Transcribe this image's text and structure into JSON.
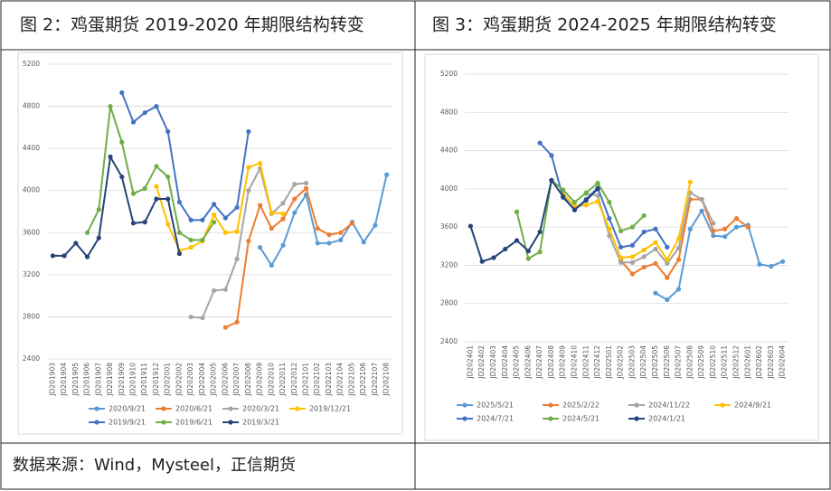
{
  "chart_data": [
    {
      "type": "line",
      "title": "图 2：鸡蛋期货 2019-2020 年期限结构转变",
      "categories": [
        "JD201903",
        "JD201904",
        "JD201905",
        "JD201906",
        "JD201907",
        "JD201908",
        "JD201909",
        "JD201910",
        "JD201911",
        "JD201912",
        "JD202001",
        "JD202002",
        "JD202003",
        "JD202004",
        "JD202005",
        "JD202006",
        "JD202007",
        "JD202008",
        "JD202009",
        "JD202010",
        "JD202011",
        "JD202012",
        "JD202101",
        "JD202102",
        "JD202103",
        "JD202104",
        "JD202105",
        "JD202106",
        "JD202107",
        "JD202108"
      ],
      "ylim": [
        2400,
        5200
      ],
      "yticks": [
        2400,
        2800,
        3200,
        3600,
        4000,
        4400,
        4800,
        5200
      ],
      "grid": true,
      "legend": "bottom",
      "series": [
        {
          "name": "2020/9/21",
          "color": "#5b9bd5",
          "values": [
            null,
            null,
            null,
            null,
            null,
            null,
            null,
            null,
            null,
            null,
            null,
            null,
            null,
            null,
            null,
            null,
            null,
            null,
            3460,
            3290,
            3480,
            3790,
            3960,
            3500,
            3500,
            3530,
            3700,
            3510,
            3670,
            4150
          ]
        },
        {
          "name": "2020/6/21",
          "color": "#ed7d31",
          "values": [
            null,
            null,
            null,
            null,
            null,
            null,
            null,
            null,
            null,
            null,
            null,
            null,
            null,
            null,
            null,
            2700,
            2750,
            3520,
            3860,
            3640,
            3730,
            3920,
            4020,
            3640,
            3580,
            3600,
            3690,
            null,
            null,
            null
          ]
        },
        {
          "name": "2020/3/21",
          "color": "#a5a5a5",
          "values": [
            null,
            null,
            null,
            null,
            null,
            null,
            null,
            null,
            null,
            null,
            null,
            null,
            2800,
            2790,
            3050,
            3060,
            3350,
            4000,
            4210,
            3780,
            3880,
            4060,
            4070,
            null,
            null,
            null,
            null,
            null,
            null,
            null
          ]
        },
        {
          "name": "2019/12/21",
          "color": "#ffc000",
          "values": [
            null,
            null,
            null,
            null,
            null,
            null,
            null,
            null,
            null,
            4040,
            3680,
            3430,
            3460,
            3520,
            3770,
            3600,
            3610,
            4220,
            4260,
            3790,
            3780,
            null,
            null,
            null,
            null,
            null,
            null,
            null,
            null,
            null
          ]
        },
        {
          "name": "2019/9/21",
          "color": "#4472c4",
          "values": [
            null,
            null,
            null,
            null,
            null,
            null,
            4930,
            4650,
            4740,
            4800,
            4560,
            3890,
            3720,
            3720,
            3870,
            3740,
            3840,
            4560,
            null,
            null,
            null,
            null,
            null,
            null,
            null,
            null,
            null,
            null,
            null,
            null
          ]
        },
        {
          "name": "2019/6/21",
          "color": "#70ad47",
          "values": [
            null,
            null,
            null,
            3600,
            3820,
            4800,
            4460,
            3970,
            4020,
            4230,
            4130,
            3600,
            3530,
            3530,
            3700,
            null,
            null,
            null,
            null,
            null,
            null,
            null,
            null,
            null,
            null,
            null,
            null,
            null,
            null,
            null
          ]
        },
        {
          "name": "2019/3/21",
          "color": "#264478",
          "values": [
            3380,
            3380,
            3500,
            3370,
            3550,
            4320,
            4130,
            3690,
            3700,
            3920,
            3920,
            3400,
            null,
            null,
            null,
            null,
            null,
            null,
            null,
            null,
            null,
            null,
            null,
            null,
            null,
            null,
            null,
            null,
            null,
            null
          ]
        }
      ]
    },
    {
      "type": "line",
      "title": "图 3：鸡蛋期货 2024-2025 年期限结构转变",
      "categories": [
        "JD202401",
        "JD202402",
        "JD202403",
        "JD202404",
        "JD202405",
        "JD202406",
        "JD202407",
        "JD202408",
        "JD202409",
        "JD202410",
        "JD202411",
        "JD202412",
        "JD202501",
        "JD202502",
        "JD202503",
        "JD202504",
        "JD202505",
        "JD202506",
        "JD202507",
        "JD202508",
        "JD202509",
        "JD202510",
        "JD202511",
        "JD202512",
        "JD202601",
        "JD202602",
        "JD202603",
        "JD202604"
      ],
      "ylim": [
        2400,
        5200
      ],
      "yticks": [
        2400,
        2800,
        3200,
        3600,
        4000,
        4400,
        4800,
        5200
      ],
      "grid": true,
      "legend": "bottom",
      "series": [
        {
          "name": "2025/5/21",
          "color": "#5b9bd5",
          "values": [
            null,
            null,
            null,
            null,
            null,
            null,
            null,
            null,
            null,
            null,
            null,
            null,
            null,
            null,
            null,
            null,
            2910,
            2840,
            2950,
            3580,
            3770,
            3510,
            3500,
            3600,
            3620,
            3210,
            3190,
            3240
          ]
        },
        {
          "name": "2025/2/22",
          "color": "#ed7d31",
          "values": [
            null,
            null,
            null,
            null,
            null,
            null,
            null,
            null,
            null,
            null,
            null,
            null,
            null,
            3250,
            3110,
            3180,
            3220,
            3070,
            3260,
            3890,
            3890,
            3560,
            3580,
            3690,
            3600,
            null,
            null,
            null
          ]
        },
        {
          "name": "2024/11/22",
          "color": "#a5a5a5",
          "values": [
            null,
            null,
            null,
            null,
            null,
            null,
            null,
            null,
            null,
            null,
            3950,
            3930,
            3510,
            3230,
            3230,
            3290,
            3370,
            3220,
            3380,
            3960,
            3890,
            3640,
            null,
            null,
            null,
            null,
            null,
            null
          ]
        },
        {
          "name": "2024/9/21",
          "color": "#ffc000",
          "values": [
            null,
            null,
            null,
            null,
            null,
            null,
            null,
            null,
            3950,
            3820,
            3830,
            3870,
            3580,
            3280,
            3290,
            3360,
            3440,
            3260,
            3480,
            4070,
            null,
            null,
            null,
            null,
            null,
            null,
            null,
            null
          ]
        },
        {
          "name": "2024/7/21",
          "color": "#4472c4",
          "values": [
            null,
            null,
            null,
            null,
            null,
            null,
            4480,
            4350,
            3910,
            3780,
            3890,
            4010,
            3690,
            3390,
            3410,
            3550,
            3580,
            3390,
            null,
            null,
            null,
            null,
            null,
            null,
            null,
            null,
            null,
            null
          ]
        },
        {
          "name": "2024/5/21",
          "color": "#70ad47",
          "values": [
            null,
            null,
            null,
            null,
            3760,
            3270,
            3340,
            4090,
            3990,
            3860,
            3960,
            4060,
            3860,
            3560,
            3600,
            3720,
            null,
            null,
            null,
            null,
            null,
            null,
            null,
            null,
            null,
            null,
            null,
            null
          ]
        },
        {
          "name": "2024/1/21",
          "color": "#264478",
          "values": [
            3610,
            3240,
            3280,
            3370,
            3460,
            3350,
            3550,
            4090,
            3920,
            3780,
            3880,
            4000,
            null,
            null,
            null,
            null,
            null,
            null,
            null,
            null,
            null,
            null,
            null,
            null,
            null,
            null,
            null,
            null
          ]
        }
      ]
    }
  ],
  "source": "数据来源：Wind，Mysteel，正信期货"
}
